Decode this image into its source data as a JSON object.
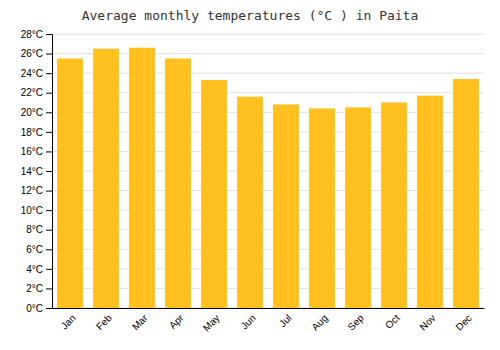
{
  "chart_data": {
    "type": "bar",
    "title": "Average monthly temperatures (°C ) in Paita",
    "categories": [
      "Jan",
      "Feb",
      "Mar",
      "Apr",
      "May",
      "Jun",
      "Jul",
      "Aug",
      "Sep",
      "Oct",
      "Nov",
      "Dec"
    ],
    "values": [
      25.5,
      26.5,
      26.6,
      25.5,
      23.3,
      21.6,
      20.8,
      20.4,
      20.5,
      21.0,
      21.7,
      23.4
    ],
    "color": "#FFC020",
    "ylim": [
      0,
      28
    ],
    "yticks": [
      {
        "value": 0,
        "label": "0°C"
      },
      {
        "value": 2,
        "label": "2°C"
      },
      {
        "value": 4,
        "label": "4°C"
      },
      {
        "value": 6,
        "label": "6°C"
      },
      {
        "value": 8,
        "label": "8°C"
      },
      {
        "value": 10,
        "label": "10°C"
      },
      {
        "value": 12,
        "label": "12°C"
      },
      {
        "value": 14,
        "label": "14°C"
      },
      {
        "value": 16,
        "label": "16°C"
      },
      {
        "value": 18,
        "label": "18°C"
      },
      {
        "value": 20,
        "label": "20°C"
      },
      {
        "value": 22,
        "label": "22°C"
      },
      {
        "value": 24,
        "label": "24°C"
      },
      {
        "value": 26,
        "label": "26°C"
      },
      {
        "value": 28,
        "label": "28°C"
      }
    ],
    "grid": true
  }
}
